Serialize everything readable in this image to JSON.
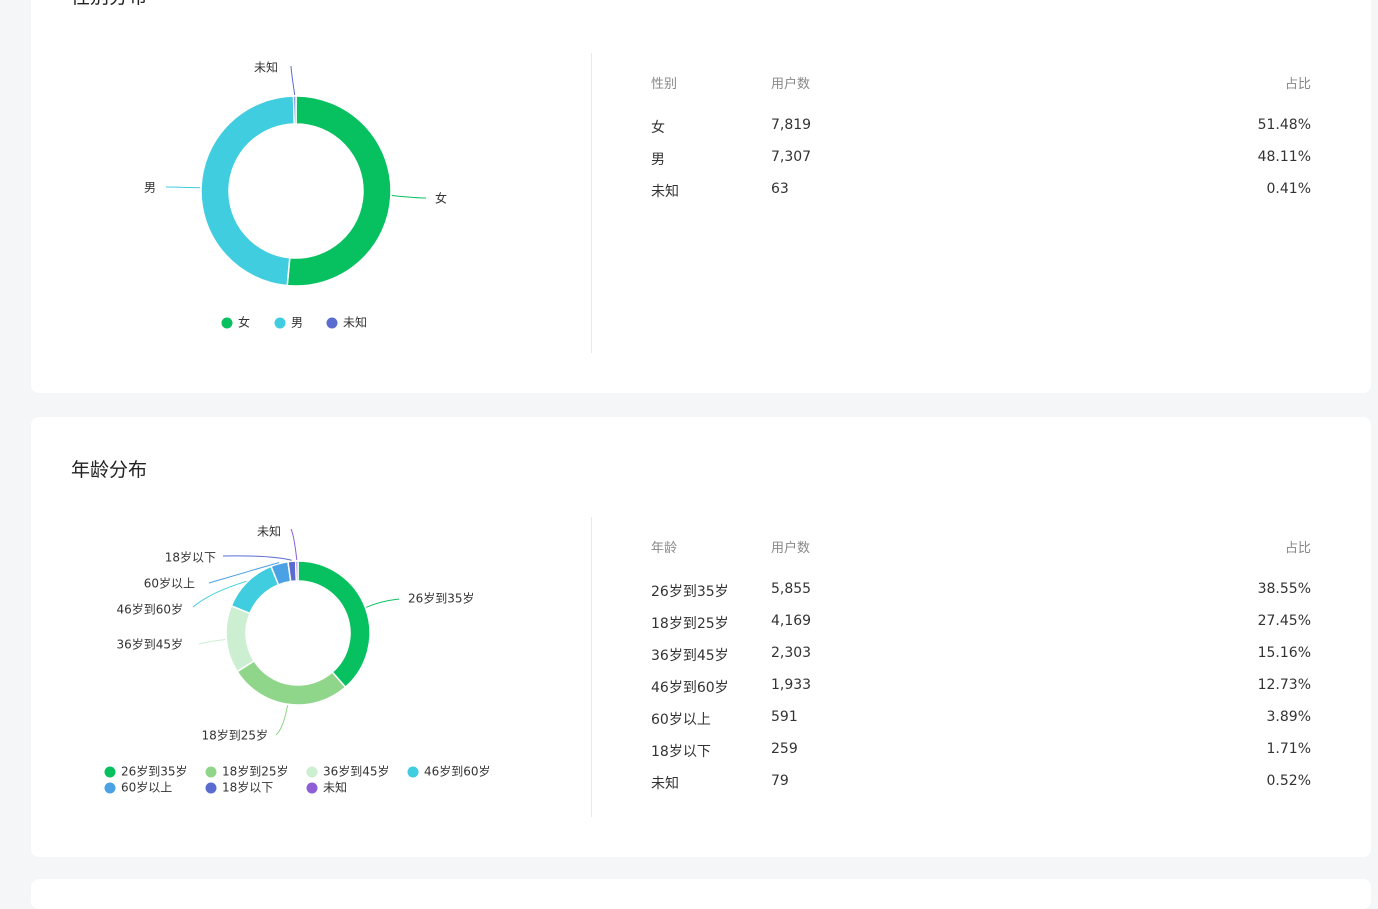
{
  "gender": {
    "title": "性别分布",
    "table": {
      "headers": [
        "性别",
        "用户数",
        "占比"
      ],
      "rows": [
        [
          "女",
          "7,819",
          "51.48%"
        ],
        [
          "男",
          "7,307",
          "48.11%"
        ],
        [
          "未知",
          "63",
          "0.41%"
        ]
      ]
    }
  },
  "age": {
    "title": "年龄分布",
    "table": {
      "headers": [
        "年龄",
        "用户数",
        "占比"
      ],
      "rows": [
        [
          "26岁到35岁",
          "5,855",
          "38.55%"
        ],
        [
          "18岁到25岁",
          "4,169",
          "27.45%"
        ],
        [
          "36岁到45岁",
          "2,303",
          "15.16%"
        ],
        [
          "46岁到60岁",
          "1,933",
          "12.73%"
        ],
        [
          "60岁以上",
          "591",
          "3.89%"
        ],
        [
          "18岁以下",
          "259",
          "1.71%"
        ],
        [
          "未知",
          "79",
          "0.52%"
        ]
      ]
    }
  },
  "chart_data": [
    {
      "type": "pie",
      "title": "性别分布",
      "donut": true,
      "categories": [
        "女",
        "男",
        "未知"
      ],
      "values": [
        7819,
        7307,
        63
      ],
      "colors": [
        "#07c160",
        "#40cde0",
        "#5a6ccf"
      ],
      "legend_position": "bottom"
    },
    {
      "type": "pie",
      "title": "年龄分布",
      "donut": true,
      "categories": [
        "26岁到35岁",
        "18岁到25岁",
        "36岁到45岁",
        "46岁到60岁",
        "60岁以上",
        "18岁以下",
        "未知"
      ],
      "values": [
        5855,
        4169,
        2303,
        1933,
        591,
        259,
        79
      ],
      "colors": [
        "#07c160",
        "#8fd68a",
        "#ccefd2",
        "#40cde0",
        "#4aa2e5",
        "#5a6ccf",
        "#8e5fd6"
      ],
      "legend_position": "bottom"
    }
  ]
}
